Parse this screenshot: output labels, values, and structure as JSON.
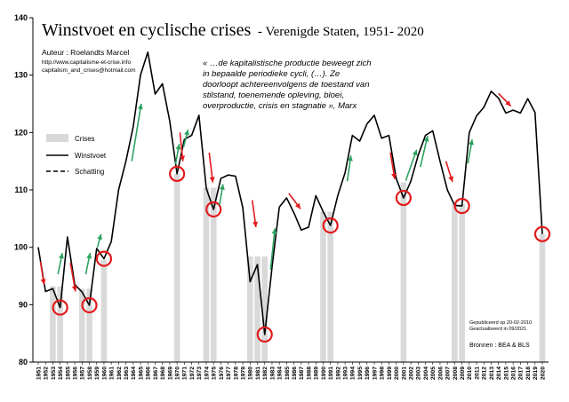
{
  "title": "Winstvoet en cyclische crises",
  "subtitle": "- Verenigde Staten, 1951- 2020",
  "author": {
    "line1": "Auteur : Roelandts Marcel",
    "line2": "http://www.capitalisme-et-crise.info",
    "line3": "capitalism_and_crises@hotmail.com"
  },
  "quote": [
    "« …de kapitalistische productie beweegt zich",
    "in bepaalde periodieke cycli, (…). Ze",
    "doorloopt achtereenvolgens de toestand van",
    "stilstand, toenemende opleving, bloei,",
    "overproductie, crisis en stagnatie », Marx"
  ],
  "legend": {
    "crises": "Crises",
    "winstvoet": "Winstvoet",
    "schatting": "Schatting"
  },
  "notes": {
    "published": "Gepubliceerd op 20-02-2010",
    "updated": "Geactualiseerd in 09/2021",
    "sources": "Bronnen : BEA & BLS"
  },
  "colors": {
    "line": "#000000",
    "crisis_bar": "#d9d9d9",
    "circle": "#e31a1c",
    "down_arrow": "#e31a1c",
    "up_arrow": "#2ca25f"
  },
  "chart_data": {
    "type": "line",
    "title": "Winstvoet en cyclische crises",
    "subtitle": "- Verenigde Staten, 1951- 2020",
    "ylim": [
      80,
      140
    ],
    "yticks": [
      80,
      90,
      100,
      110,
      120,
      130,
      140
    ],
    "x": [
      1951,
      1952,
      1953,
      1954,
      1955,
      1956,
      1957,
      1958,
      1959,
      1960,
      1961,
      1962,
      1963,
      1964,
      1965,
      1966,
      1967,
      1968,
      1969,
      1970,
      1971,
      1972,
      1973,
      1974,
      1975,
      1976,
      1977,
      1978,
      1979,
      1980,
      1981,
      1982,
      1983,
      1984,
      1985,
      1986,
      1987,
      1988,
      1989,
      1990,
      1991,
      1992,
      1993,
      1994,
      1995,
      1996,
      1997,
      1998,
      1999,
      2000,
      2001,
      2002,
      2003,
      2004,
      2005,
      2006,
      2007,
      2008,
      2009,
      2010,
      2011,
      2012,
      2013,
      2014,
      2015,
      2016,
      2017,
      2018,
      2019,
      2020
    ],
    "series": [
      {
        "name": "Winstvoet",
        "values": [
          100,
          92.3,
          92.8,
          89.5,
          101.8,
          93.5,
          92.2,
          89.9,
          99.8,
          98,
          101,
          110,
          115,
          121,
          130,
          134,
          126.7,
          128.5,
          122,
          112.8,
          118.8,
          119.5,
          123,
          110.3,
          106.6,
          112,
          112.6,
          112.4,
          106.9,
          94,
          97,
          84.8,
          96.5,
          107,
          108.6,
          106,
          103,
          103.5,
          109,
          106.2,
          103.8,
          109,
          113,
          119.5,
          118.5,
          121.5,
          123,
          119,
          119.5,
          112,
          108.6,
          111.5,
          116,
          119.5,
          120.3,
          115,
          110,
          107.3,
          107.2,
          120,
          122.9,
          124.4,
          127.2,
          126,
          123.4,
          123.9,
          123.4,
          125.9,
          123.5,
          102.3
        ]
      }
    ],
    "crisis_years": [
      1953,
      1954,
      1957,
      1958,
      1960,
      1970,
      1974,
      1975,
      1980,
      1981,
      1982,
      1990,
      1991,
      2001,
      2008,
      2009,
      2020
    ],
    "crisis_bar_heights": {
      "1953": 93.2,
      "1954": 93.2,
      "1957": 92.8,
      "1958": 92.8,
      "1960": 97.8,
      "1970": 112.8,
      "1974": 110.4,
      "1975": 110.4,
      "1980": 98.4,
      "1981": 98.4,
      "1982": 98.4,
      "1990": 106.2,
      "1991": 106.2,
      "2001": 111.3,
      "2008": 107.5,
      "2009": 107.5,
      "2020": 102.3
    },
    "circled_years": [
      1954,
      1958,
      1960,
      1970,
      1975,
      1982,
      1991,
      2001,
      2009,
      2020
    ],
    "down_arrows": [
      [
        1951.3,
        97.5,
        1951.8,
        93.5
      ],
      [
        1955.4,
        97.3,
        1956.1,
        92.3
      ],
      [
        1970.4,
        120,
        1970.8,
        115
      ],
      [
        1974.4,
        116.5,
        1974.9,
        111.3
      ],
      [
        1980.3,
        108.2,
        1980.8,
        103.5
      ],
      [
        1985.3,
        109.4,
        1986.9,
        106.7
      ],
      [
        1999.2,
        116.5,
        1999.8,
        111.9
      ],
      [
        2006.8,
        115,
        2007.7,
        111.4
      ],
      [
        2014,
        126.8,
        2015.7,
        124.6
      ]
    ],
    "up_arrows": [
      [
        1953.7,
        95.3,
        1954.3,
        99
      ],
      [
        1957.5,
        95.3,
        1958.1,
        99
      ],
      [
        1959.1,
        100,
        1959.6,
        102.3
      ],
      [
        1963.8,
        115,
        1965.1,
        125
      ],
      [
        1969.8,
        114.5,
        1970.3,
        118
      ],
      [
        1970.9,
        117.5,
        1971.5,
        120.5
      ],
      [
        1975.8,
        107.3,
        1976.3,
        111
      ],
      [
        1982.8,
        96.1,
        1983.4,
        103.3
      ],
      [
        1993.3,
        111.5,
        1993.8,
        116
      ],
      [
        2001.3,
        111.6,
        2002.8,
        117
      ],
      [
        2003.3,
        114,
        2004.3,
        119.4
      ],
      [
        2009.8,
        114.6,
        2010.4,
        118.8
      ]
    ]
  }
}
